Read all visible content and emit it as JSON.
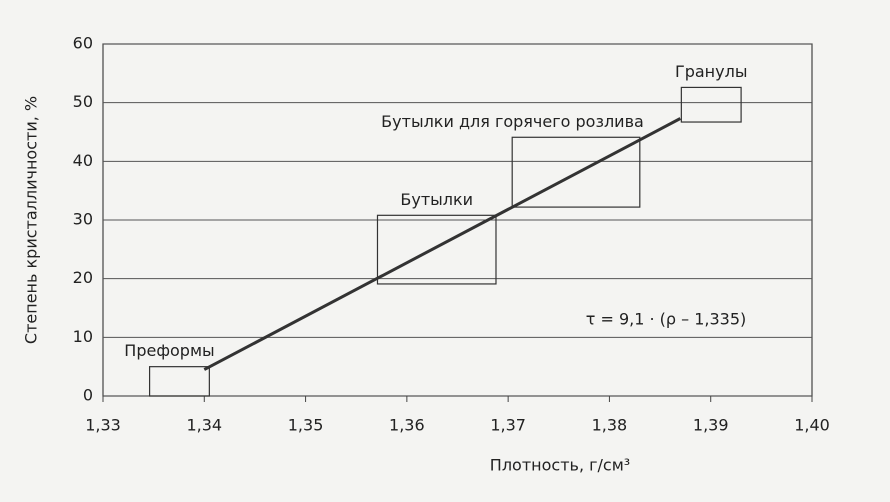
{
  "chart_data": {
    "type": "line",
    "x_label": "Плотность, г/см³",
    "y_label": "Степень кристалличности, %",
    "annotation": "τ = 9,1 · (ρ – 1,335)",
    "xlim": [
      1.33,
      1.4
    ],
    "xticks": [
      {
        "value": 1.33,
        "label": "1,33"
      },
      {
        "value": 1.34,
        "label": "1,34"
      },
      {
        "value": 1.35,
        "label": "1,35"
      },
      {
        "value": 1.36,
        "label": "1,36"
      },
      {
        "value": 1.37,
        "label": "1,37"
      },
      {
        "value": 1.38,
        "label": "1,38"
      },
      {
        "value": 1.39,
        "label": "1,39"
      },
      {
        "value": 1.4,
        "label": "1,40"
      }
    ],
    "ylim": [
      0,
      60
    ],
    "yticks": [
      0,
      10,
      20,
      30,
      40,
      50,
      60
    ],
    "grid": true,
    "series": [
      {
        "color": "#333333",
        "x": [
          1.34,
          1.387
        ],
        "values": [
          4.5,
          47.3
        ]
      }
    ],
    "boxes": [
      {
        "label": "Преформы",
        "x": [
          1.3346,
          1.3405
        ],
        "y": [
          0,
          5
        ]
      },
      {
        "label": "Бутылки",
        "x": [
          1.3571,
          1.3688
        ],
        "y": [
          19.1,
          30.8
        ]
      },
      {
        "label": "Бутылки для горячего розлива",
        "x": [
          1.3704,
          1.383
        ],
        "y": [
          32.2,
          44.1
        ]
      },
      {
        "label": "Гранулы",
        "x": [
          1.3871,
          1.393
        ],
        "y": [
          46.7,
          52.6
        ]
      }
    ]
  }
}
